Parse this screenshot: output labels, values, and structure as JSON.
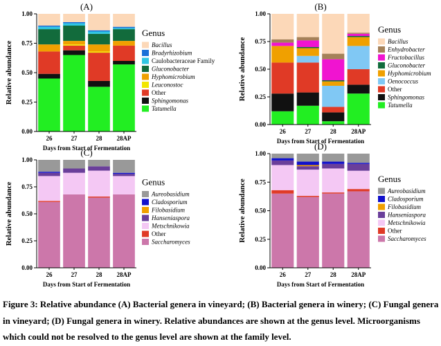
{
  "chart_data": [
    {
      "type": "bar",
      "stacked": true,
      "title": "(A)",
      "xlabel": "Days from Start of Fermentation",
      "ylabel": "Relative abundance",
      "categories": [
        "26",
        "27",
        "28",
        "28AP"
      ],
      "ylim": [
        0,
        1
      ],
      "yticks": [
        "0.00",
        "0.25",
        "0.50",
        "0.75",
        "1.00"
      ],
      "legend_title": "Genus",
      "legend_position": "right",
      "series": [
        {
          "name": "Tatumella",
          "italic": true,
          "color": "#22ee22",
          "values": [
            0.45,
            0.65,
            0.38,
            0.57
          ]
        },
        {
          "name": "Sphingomonas",
          "italic": true,
          "color": "#111111",
          "values": [
            0.04,
            0.04,
            0.05,
            0.03
          ]
        },
        {
          "name": "Other",
          "italic": false,
          "color": "#e03a26",
          "values": [
            0.19,
            0.04,
            0.24,
            0.13
          ]
        },
        {
          "name": "Leuconostoc",
          "italic": true,
          "color": "#f2e600",
          "values": [
            0.0,
            0.01,
            0.01,
            0.0
          ]
        },
        {
          "name": "Hyphomicrobium",
          "italic": true,
          "color": "#f0a000",
          "values": [
            0.06,
            0.03,
            0.06,
            0.04
          ]
        },
        {
          "name": "Gluconobacter",
          "italic": true,
          "color": "#126b3c",
          "values": [
            0.13,
            0.13,
            0.09,
            0.1
          ]
        },
        {
          "name": "Caulobacteraceae Family",
          "italic": false,
          "color": "#30c6e4",
          "values": [
            0.02,
            0.02,
            0.02,
            0.01
          ]
        },
        {
          "name": "Bradyrhizobium",
          "italic": true,
          "color": "#1a70d8",
          "values": [
            0.01,
            0.01,
            0.01,
            0.01
          ]
        },
        {
          "name": "Bacillus",
          "italic": true,
          "color": "#fcd8b8",
          "values": [
            0.1,
            0.07,
            0.14,
            0.11
          ]
        }
      ]
    },
    {
      "type": "bar",
      "stacked": true,
      "title": "(B)",
      "xlabel": "Days from Start of Fermentation",
      "ylabel": "Relative abundance",
      "categories": [
        "26",
        "27",
        "28",
        "28AP"
      ],
      "ylim": [
        0,
        1
      ],
      "yticks": [
        "0.00",
        "0.25",
        "0.50",
        "0.75",
        "1.00"
      ],
      "legend_title": "Genus",
      "legend_position": "right",
      "series": [
        {
          "name": "Tatumella",
          "italic": true,
          "color": "#22ee22",
          "values": [
            0.12,
            0.17,
            0.03,
            0.28
          ]
        },
        {
          "name": "Sphingomonas",
          "italic": true,
          "color": "#111111",
          "values": [
            0.16,
            0.12,
            0.08,
            0.08
          ]
        },
        {
          "name": "Other",
          "italic": false,
          "color": "#e03a26",
          "values": [
            0.28,
            0.27,
            0.05,
            0.14
          ]
        },
        {
          "name": "Oenococcus",
          "italic": true,
          "color": "#80c8f4",
          "values": [
            0.0,
            0.06,
            0.19,
            0.21
          ]
        },
        {
          "name": "Hyphomicrobium",
          "italic": true,
          "color": "#f0a000",
          "values": [
            0.15,
            0.07,
            0.04,
            0.08
          ]
        },
        {
          "name": "Gluconobacter",
          "italic": true,
          "color": "#126b3c",
          "values": [
            0.0,
            0.01,
            0.01,
            0.01
          ]
        },
        {
          "name": "Fructobacillus",
          "italic": true,
          "color": "#f014d0",
          "values": [
            0.03,
            0.06,
            0.19,
            0.02
          ]
        },
        {
          "name": "Enhydrobacter",
          "italic": true,
          "color": "#a58158",
          "values": [
            0.03,
            0.03,
            0.05,
            0.01
          ]
        },
        {
          "name": "Bacillus",
          "italic": true,
          "color": "#fcd8b8",
          "values": [
            0.23,
            0.21,
            0.36,
            0.17
          ]
        }
      ]
    },
    {
      "type": "bar",
      "stacked": true,
      "title": "(C)",
      "xlabel": "Days from Start of Fermentation",
      "ylabel": "Relative abundance",
      "categories": [
        "26",
        "27",
        "28",
        "28AP"
      ],
      "ylim": [
        0,
        1
      ],
      "yticks": [
        "0.00",
        "0.25",
        "0.50",
        "0.75",
        "1.00"
      ],
      "legend_title": "Genus",
      "legend_position": "right",
      "series": [
        {
          "name": "Saccharomyces",
          "italic": true,
          "color": "#cc77aa",
          "values": [
            0.61,
            0.68,
            0.65,
            0.68
          ]
        },
        {
          "name": "Other",
          "italic": false,
          "color": "#e03a26",
          "values": [
            0.01,
            0.0,
            0.01,
            0.0
          ]
        },
        {
          "name": "Metschnikowia",
          "italic": true,
          "color": "#f4c8f4",
          "values": [
            0.23,
            0.2,
            0.24,
            0.17
          ]
        },
        {
          "name": "Hanseniaspora",
          "italic": true,
          "color": "#6a3f9a",
          "values": [
            0.03,
            0.04,
            0.04,
            0.02
          ]
        },
        {
          "name": "Filobasidium",
          "italic": true,
          "color": "#f0a000",
          "values": [
            0.0,
            0.0,
            0.0,
            0.0
          ]
        },
        {
          "name": "Cladosporium",
          "italic": true,
          "color": "#1010cc",
          "values": [
            0.01,
            0.0,
            0.0,
            0.01
          ]
        },
        {
          "name": "Aureobasidium",
          "italic": true,
          "color": "#999999",
          "values": [
            0.11,
            0.08,
            0.06,
            0.12
          ]
        }
      ]
    },
    {
      "type": "bar",
      "stacked": true,
      "title": "(D)",
      "xlabel": "Days from Start of Fermentation",
      "ylabel": "Relative abundance",
      "categories": [
        "26",
        "27",
        "28",
        "28AP"
      ],
      "ylim": [
        0,
        1
      ],
      "yticks": [
        "0.00",
        "0.25",
        "0.50",
        "0.75",
        "1.00"
      ],
      "legend_title": "Genus",
      "legend_position": "right",
      "series": [
        {
          "name": "Saccharomyces",
          "italic": true,
          "color": "#cc77aa",
          "values": [
            0.65,
            0.62,
            0.65,
            0.67
          ]
        },
        {
          "name": "Other",
          "italic": false,
          "color": "#e03a26",
          "values": [
            0.03,
            0.01,
            0.01,
            0.02
          ]
        },
        {
          "name": "Metschnikowia",
          "italic": true,
          "color": "#f4c8f4",
          "values": [
            0.22,
            0.23,
            0.21,
            0.16
          ]
        },
        {
          "name": "Hanseniaspora",
          "italic": true,
          "color": "#6a3f9a",
          "values": [
            0.04,
            0.03,
            0.04,
            0.06
          ]
        },
        {
          "name": "Filobasidium",
          "italic": true,
          "color": "#f0a000",
          "values": [
            0.0,
            0.01,
            0.0,
            0.0
          ]
        },
        {
          "name": "Cladosporium",
          "italic": true,
          "color": "#1010cc",
          "values": [
            0.02,
            0.03,
            0.02,
            0.01
          ]
        },
        {
          "name": "Aureobasidium",
          "italic": true,
          "color": "#999999",
          "values": [
            0.04,
            0.07,
            0.07,
            0.08
          ]
        }
      ]
    }
  ],
  "caption": "Figure 3: Relative abundance (A) Bacterial genera in vineyard; (B) Bacterial genera in winery; (C) Fungal genera in vineyard; (D) Fungal genera in winery. Relative abundances are shown at the genus level. Microorganisms which could not be resolved to the genus level are shown at the family level."
}
